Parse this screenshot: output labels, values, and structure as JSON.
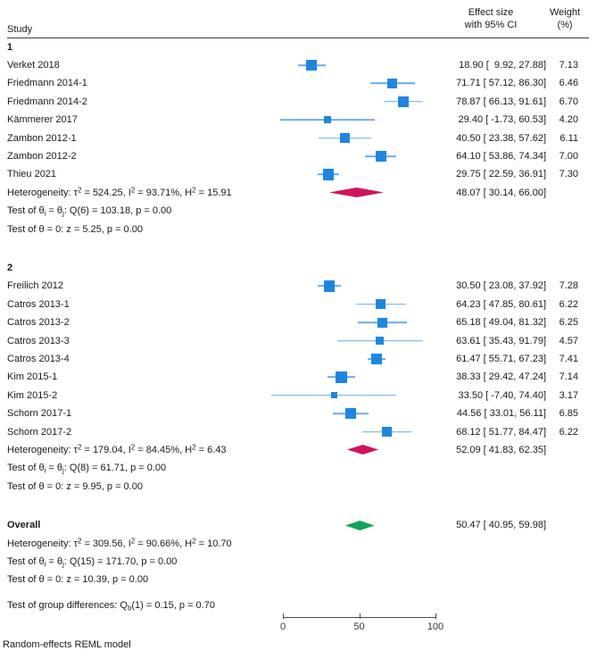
{
  "header": {
    "study": "Study",
    "effect_line1": "Effect size",
    "effect_line2": "with 95% CI",
    "weight_line1": "Weight",
    "weight_line2": "(%)"
  },
  "footer": {
    "model_note": "Random-effects REML model"
  },
  "colors": {
    "square": "#1f86e0",
    "ci_line": "#6aabea",
    "group_diamond": "#d0145a",
    "overall_diamond": "#15a15c",
    "text": "#1a1a1a",
    "rule": "#3c3c3c"
  },
  "chart_data": {
    "type": "forest",
    "axis": {
      "min": 0,
      "max": 100,
      "ticks": [
        0,
        50,
        100
      ]
    },
    "groups": [
      {
        "label": "1",
        "studies": [
          {
            "name": "Verket 2018",
            "est": 18.9,
            "lo": 9.92,
            "hi": 27.88,
            "weight": 7.13,
            "effect_text": "18.90 [  9.92, 27.88]",
            "weight_text": "7.13"
          },
          {
            "name": "Friedmann 2014-1",
            "est": 71.71,
            "lo": 57.12,
            "hi": 86.3,
            "weight": 6.46,
            "effect_text": "71.71 [ 57.12, 86.30]",
            "weight_text": "6.46"
          },
          {
            "name": "Friedmann 2014-2",
            "est": 78.87,
            "lo": 66.13,
            "hi": 91.61,
            "weight": 6.7,
            "effect_text": "78.87 [ 66.13, 91.61]",
            "weight_text": "6.70"
          },
          {
            "name": "Kämmerer 2017",
            "est": 29.4,
            "lo": -1.73,
            "hi": 60.53,
            "weight": 4.2,
            "effect_text": "29.40 [ -1.73, 60.53]",
            "weight_text": "4.20"
          },
          {
            "name": "Zambon 2012-1",
            "est": 40.5,
            "lo": 23.38,
            "hi": 57.62,
            "weight": 6.11,
            "effect_text": "40.50 [ 23.38, 57.62]",
            "weight_text": "6.11"
          },
          {
            "name": "Zambon 2012-2",
            "est": 64.1,
            "lo": 53.86,
            "hi": 74.34,
            "weight": 7.0,
            "effect_text": "64.10 [ 53.86, 74.34]",
            "weight_text": "7.00"
          },
          {
            "name": "Thieu 2021",
            "est": 29.75,
            "lo": 22.59,
            "hi": 36.91,
            "weight": 7.3,
            "effect_text": "29.75 [ 22.59, 36.91]",
            "weight_text": "7.30"
          }
        ],
        "summary": {
          "est": 48.07,
          "lo": 30.14,
          "hi": 66.0,
          "effect_text": "48.07 [ 30.14, 66.00]"
        },
        "heterogeneity": "Heterogeneity: τ^2 = 524.25, I^2 = 93.71%, H^2 = 15.91",
        "test_theta_ij": "Test of θ_i = θ_j: Q(6) = 103.18, p = 0.00",
        "test_theta_zero": "Test of θ = 0: z = 5.25, p = 0.00"
      },
      {
        "label": "2",
        "studies": [
          {
            "name": "Freilich 2012",
            "est": 30.5,
            "lo": 23.08,
            "hi": 37.92,
            "weight": 7.28,
            "effect_text": "30.50 [ 23.08, 37.92]",
            "weight_text": "7.28"
          },
          {
            "name": "Catros 2013-1",
            "est": 64.23,
            "lo": 47.85,
            "hi": 80.61,
            "weight": 6.22,
            "effect_text": "64.23 [ 47.85, 80.61]",
            "weight_text": "6.22"
          },
          {
            "name": "Catros 2013-2",
            "est": 65.18,
            "lo": 49.04,
            "hi": 81.32,
            "weight": 6.25,
            "effect_text": "65.18 [ 49.04, 81.32]",
            "weight_text": "6.25"
          },
          {
            "name": "Catros 2013-3",
            "est": 63.61,
            "lo": 35.43,
            "hi": 91.79,
            "weight": 4.57,
            "effect_text": "63.61 [ 35.43, 91.79]",
            "weight_text": "4.57"
          },
          {
            "name": "Catros 2013-4",
            "est": 61.47,
            "lo": 55.71,
            "hi": 67.23,
            "weight": 7.41,
            "effect_text": "61.47 [ 55.71, 67.23]",
            "weight_text": "7.41"
          },
          {
            "name": "Kim 2015-1",
            "est": 38.33,
            "lo": 29.42,
            "hi": 47.24,
            "weight": 7.14,
            "effect_text": "38.33 [ 29.42, 47.24]",
            "weight_text": "7.14"
          },
          {
            "name": "Kim 2015-2",
            "est": 33.5,
            "lo": -7.4,
            "hi": 74.4,
            "weight": 3.17,
            "effect_text": "33.50 [ -7.40, 74.40]",
            "weight_text": "3.17"
          },
          {
            "name": "Schorn 2017-1",
            "est": 44.56,
            "lo": 33.01,
            "hi": 56.11,
            "weight": 6.85,
            "effect_text": "44.56 [ 33.01, 56.11]",
            "weight_text": "6.85"
          },
          {
            "name": "Schorn 2017-2",
            "est": 68.12,
            "lo": 51.77,
            "hi": 84.47,
            "weight": 6.22,
            "effect_text": "68.12 [ 51.77, 84.47]",
            "weight_text": "6.22"
          }
        ],
        "summary": {
          "est": 52.09,
          "lo": 41.83,
          "hi": 62.35,
          "effect_text": "52.09 [ 41.83, 62.35]"
        },
        "heterogeneity": "Heterogeneity: τ^2 = 179.04, I^2 = 84.45%, H^2 = 6.43",
        "test_theta_ij": "Test of θ_i = θ_j: Q(8) = 61.71, p = 0.00",
        "test_theta_zero": "Test of θ = 0: z = 9.95, p = 0.00"
      }
    ],
    "overall": {
      "label": "Overall",
      "est": 50.47,
      "lo": 40.95,
      "hi": 59.98,
      "effect_text": "50.47 [ 40.95, 59.98]",
      "heterogeneity": "Heterogeneity: τ^2 = 309.56, I^2 = 90.66%, H^2 = 10.70",
      "test_theta_ij": "Test of θ_i = θ_j: Q(15) = 171.70, p = 0.00",
      "test_theta_zero": "Test of θ = 0: z = 10.39, p = 0.00"
    },
    "group_difference": "Test of group differences: Q_b(1) = 0.15, p = 0.70"
  }
}
